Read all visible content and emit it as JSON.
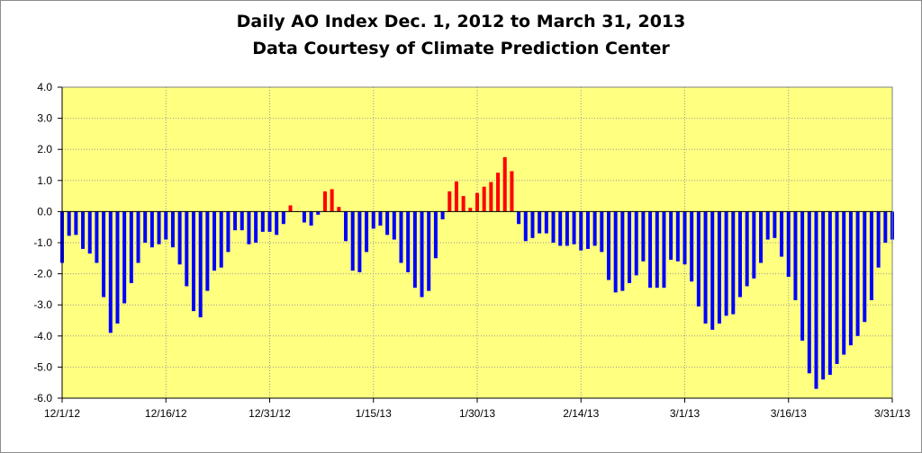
{
  "chart_data": {
    "type": "bar",
    "title": "Daily AO Index Dec. 1, 2012 to March 31, 2013",
    "subtitle": "Data Courtesy of Climate Prediction Center",
    "xlabel": "",
    "ylabel": "",
    "ylim": [
      -6.0,
      4.0
    ],
    "yticks": [
      "4.0",
      "3.0",
      "2.0",
      "1.0",
      "0.0",
      "-1.0",
      "-2.0",
      "-3.0",
      "-4.0",
      "-5.0",
      "-6.0"
    ],
    "xtick_labels": [
      "12/1/12",
      "12/16/12",
      "12/31/12",
      "1/15/13",
      "1/30/13",
      "2/14/13",
      "3/1/13",
      "3/16/13",
      "3/31/13"
    ],
    "grid": "both",
    "legend": "none",
    "start_date": "12/1/12",
    "end_date": "3/31/13",
    "positive_color": "#ff0000",
    "negative_color": "#0000ff",
    "plot_background": "#ffff80",
    "values": [
      -1.65,
      -0.78,
      -0.75,
      -1.2,
      -1.35,
      -1.65,
      -2.75,
      -3.9,
      -3.6,
      -2.95,
      -2.3,
      -1.65,
      -1.0,
      -1.15,
      -1.05,
      -0.9,
      -1.15,
      -1.7,
      -2.4,
      -3.2,
      -3.4,
      -2.55,
      -1.9,
      -1.8,
      -1.3,
      -0.6,
      -0.6,
      -1.05,
      -1.0,
      -0.65,
      -0.65,
      -0.75,
      -0.4,
      0.2,
      0.0,
      -0.35,
      -0.45,
      -0.1,
      0.65,
      0.72,
      0.15,
      -0.95,
      -1.9,
      -1.95,
      -1.3,
      -0.55,
      -0.45,
      -0.75,
      -0.9,
      -1.65,
      -1.95,
      -2.45,
      -2.75,
      -2.55,
      -1.5,
      -0.25,
      0.65,
      0.97,
      0.5,
      0.12,
      0.6,
      0.8,
      0.95,
      1.25,
      1.75,
      1.3,
      -0.4,
      -0.95,
      -0.85,
      -0.7,
      -0.7,
      -1.0,
      -1.1,
      -1.1,
      -1.05,
      -1.25,
      -1.2,
      -1.1,
      -1.3,
      -2.2,
      -2.6,
      -2.55,
      -2.3,
      -2.05,
      -1.6,
      -2.45,
      -2.45,
      -2.45,
      -1.55,
      -1.6,
      -1.7,
      -2.25,
      -3.05,
      -3.6,
      -3.8,
      -3.6,
      -3.35,
      -3.3,
      -2.75,
      -2.4,
      -2.15,
      -1.65,
      -0.9,
      -0.85,
      -1.45,
      -2.1,
      -2.85,
      -4.15,
      -5.2,
      -5.7,
      -5.4,
      -5.25,
      -4.9,
      -4.6,
      -4.3,
      -4.0,
      -3.55,
      -2.85,
      -1.8,
      -1.0,
      -0.9
    ]
  }
}
